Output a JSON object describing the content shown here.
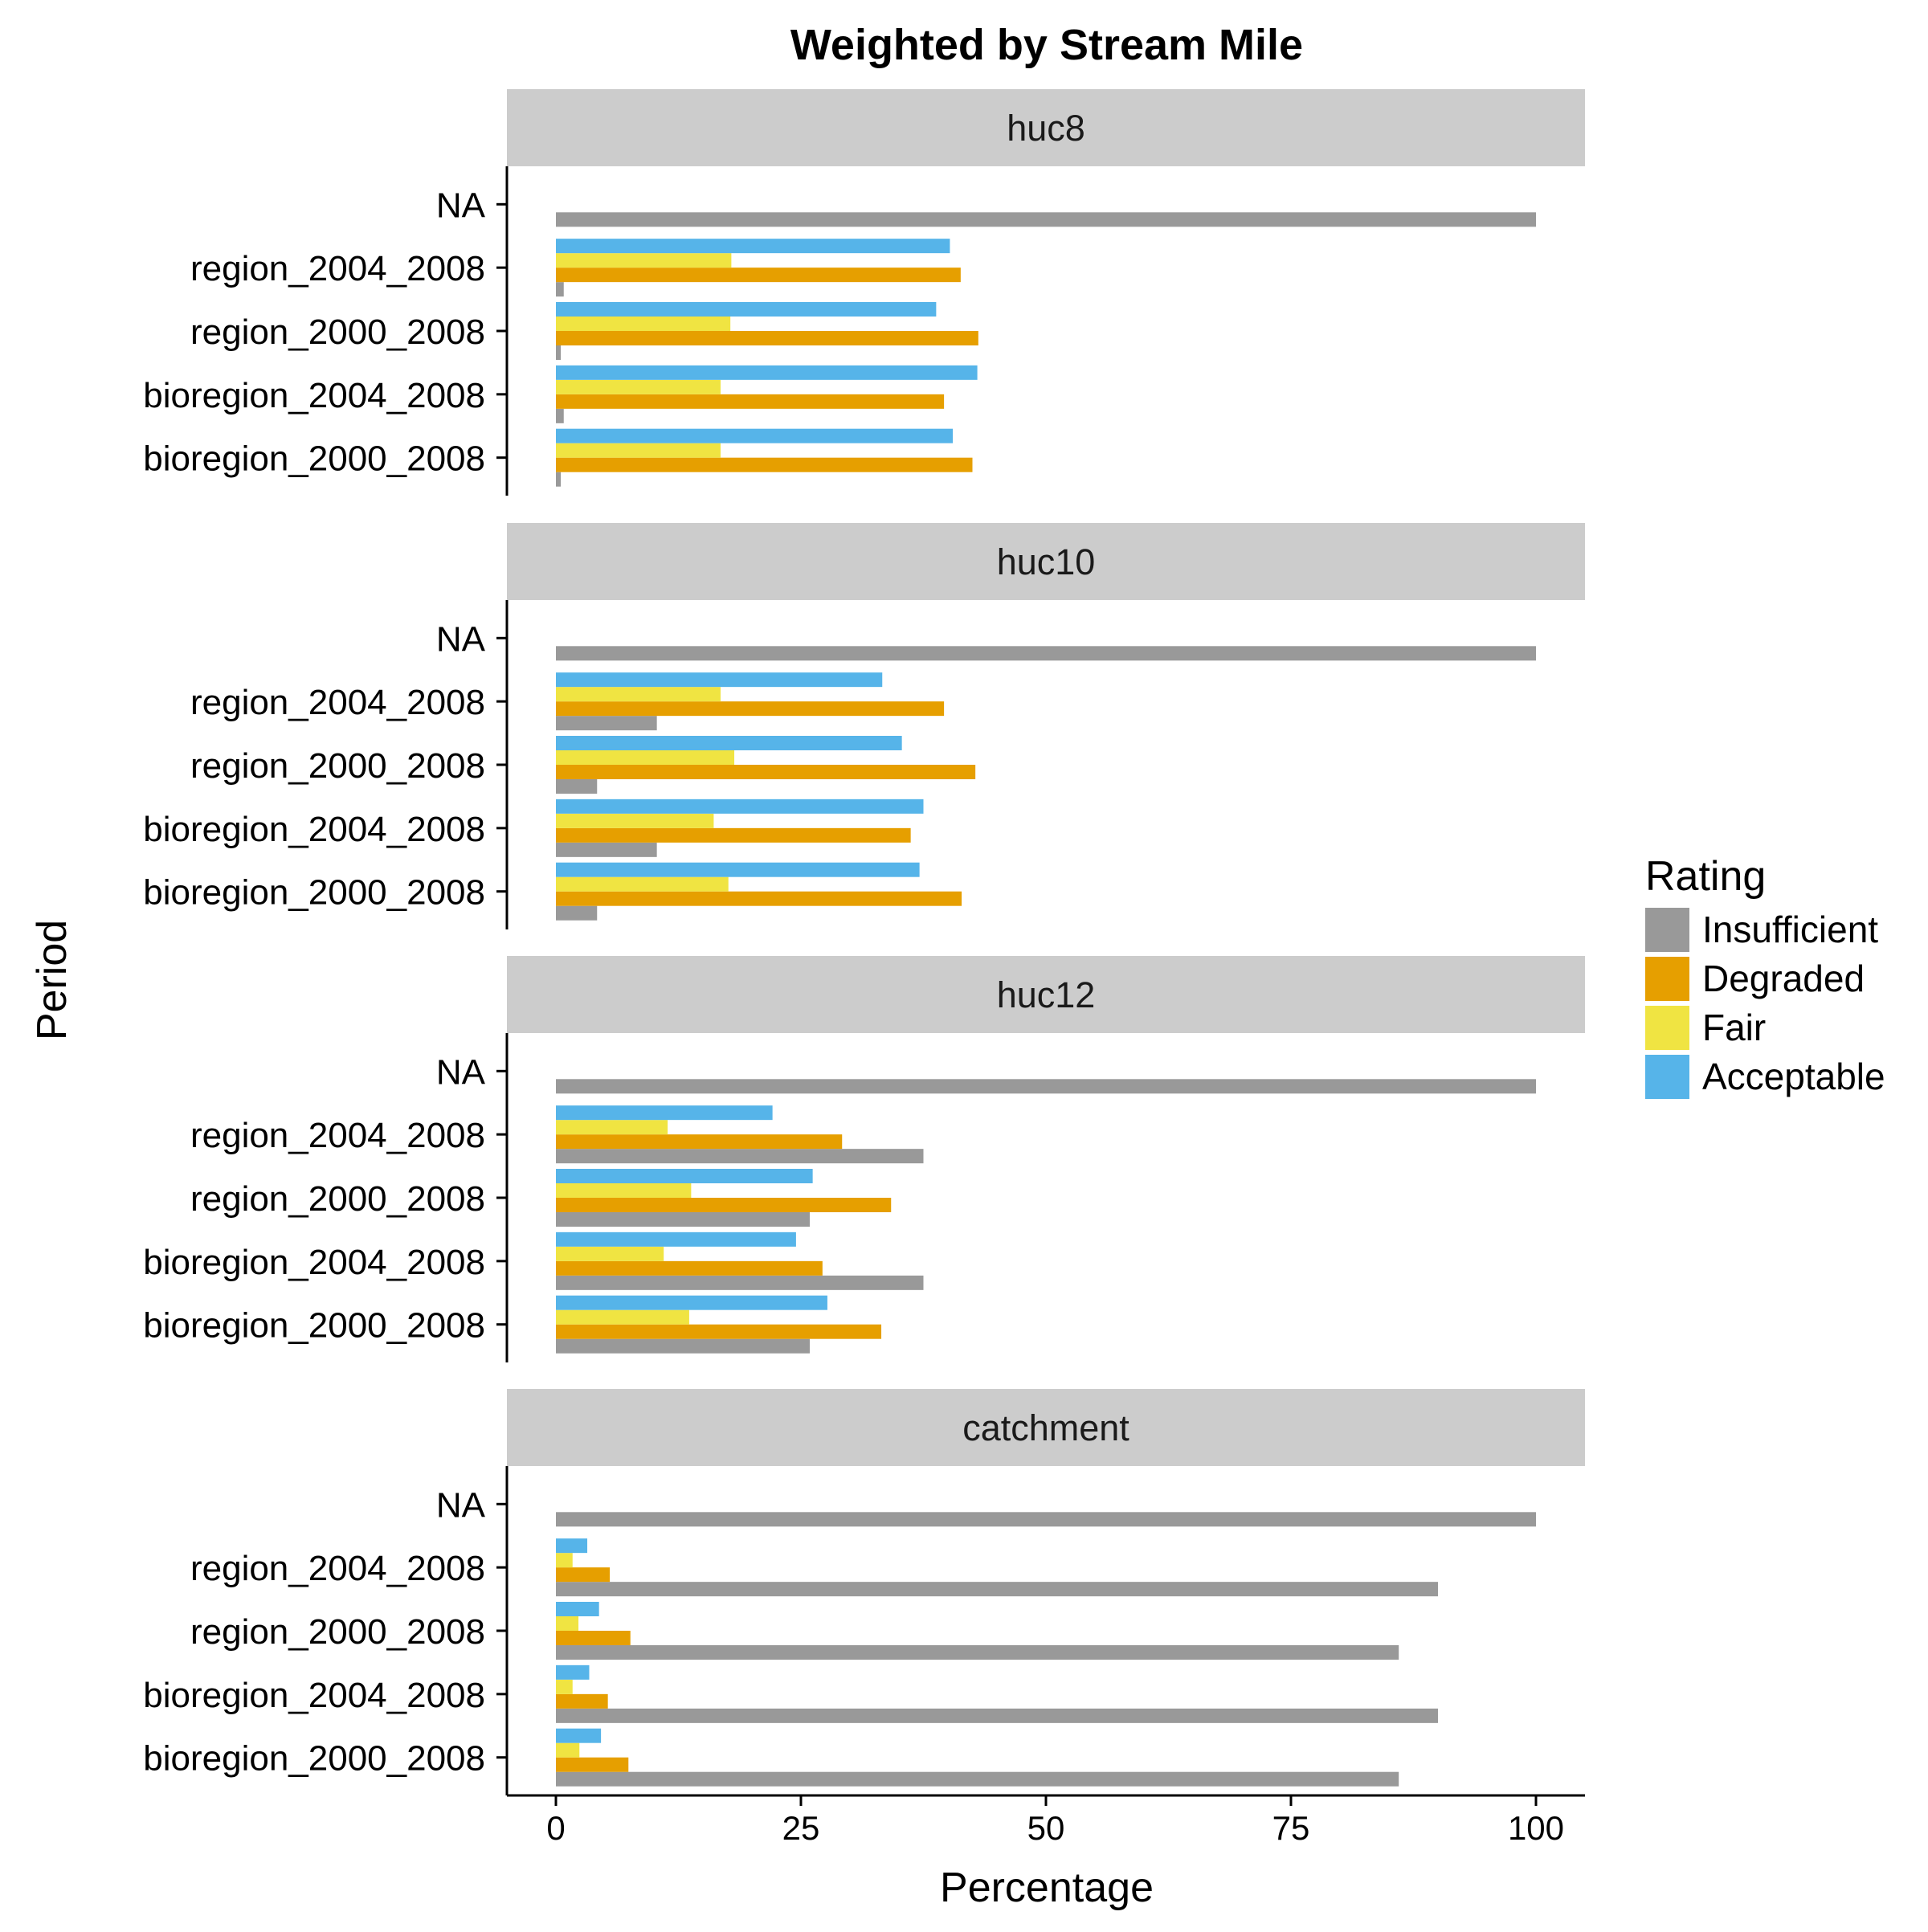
{
  "chart_data": {
    "type": "bar",
    "orientation": "horizontal",
    "title": "Weighted by Stream Mile",
    "xlabel": "Percentage",
    "ylabel": "Period",
    "xlim": [
      -5,
      105
    ],
    "x_ticks": [
      "0",
      "25",
      "50",
      "75",
      "100"
    ],
    "grid": false,
    "categories": [
      "NA",
      "region_2004_2008",
      "region_2000_2008",
      "bioregion_2004_2008",
      "bioregion_2000_2008"
    ],
    "legend": {
      "title": "Rating",
      "placement": "right",
      "entries": [
        {
          "name": "Insufficient",
          "color": "#999999"
        },
        {
          "name": "Degraded",
          "color": "#E69F00"
        },
        {
          "name": "Fair",
          "color": "#F0E442"
        },
        {
          "name": "Acceptable",
          "color": "#56B4E9"
        }
      ]
    },
    "panels": [
      {
        "label": "huc8",
        "series": [
          {
            "name": "Insufficient",
            "values": [
              100,
              0.8,
              0.5,
              0.8,
              0.5
            ]
          },
          {
            "name": "Degraded",
            "values": [
              null,
              41.3,
              43.1,
              39.6,
              42.5
            ]
          },
          {
            "name": "Fair",
            "values": [
              null,
              17.9,
              17.8,
              16.8,
              16.8
            ]
          },
          {
            "name": "Acceptable",
            "values": [
              null,
              40.2,
              38.8,
              43.0,
              40.5
            ]
          }
        ]
      },
      {
        "label": "huc10",
        "series": [
          {
            "name": "Insufficient",
            "values": [
              100,
              10.3,
              4.2,
              10.3,
              4.2
            ]
          },
          {
            "name": "Degraded",
            "values": [
              null,
              39.6,
              42.8,
              36.2,
              41.4
            ]
          },
          {
            "name": "Fair",
            "values": [
              null,
              16.8,
              18.2,
              16.1,
              17.6
            ]
          },
          {
            "name": "Acceptable",
            "values": [
              null,
              33.3,
              35.3,
              37.5,
              37.1
            ]
          }
        ]
      },
      {
        "label": "huc12",
        "series": [
          {
            "name": "Insufficient",
            "values": [
              100,
              37.5,
              25.9,
              37.5,
              25.9
            ]
          },
          {
            "name": "Degraded",
            "values": [
              null,
              29.2,
              34.2,
              27.2,
              33.2
            ]
          },
          {
            "name": "Fair",
            "values": [
              null,
              11.4,
              13.8,
              11.0,
              13.6
            ]
          },
          {
            "name": "Acceptable",
            "values": [
              null,
              22.1,
              26.2,
              24.5,
              27.7
            ]
          }
        ]
      },
      {
        "label": "catchment",
        "series": [
          {
            "name": "Insufficient",
            "values": [
              100,
              90.0,
              86.0,
              90.0,
              86.0
            ]
          },
          {
            "name": "Degraded",
            "values": [
              null,
              5.5,
              7.6,
              5.3,
              7.4
            ]
          },
          {
            "name": "Fair",
            "values": [
              null,
              1.7,
              2.3,
              1.7,
              2.4
            ]
          },
          {
            "name": "Acceptable",
            "values": [
              null,
              3.2,
              4.4,
              3.4,
              4.6
            ]
          }
        ]
      }
    ]
  }
}
